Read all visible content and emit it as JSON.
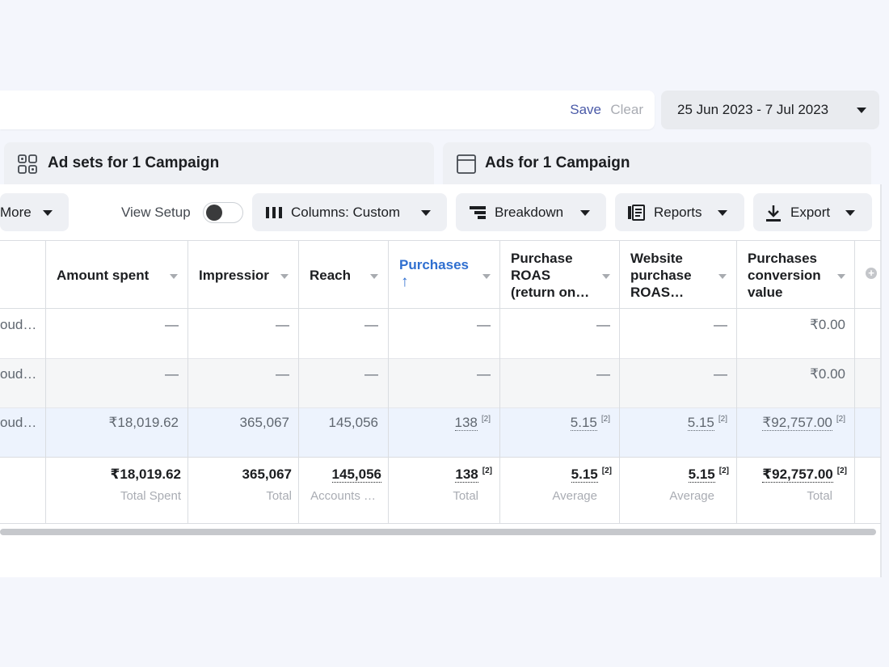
{
  "filter_bar": {
    "save_label": "Save",
    "clear_label": "Clear"
  },
  "date_range": {
    "label": "25 Jun 2023 - 7 Jul 2023",
    "icon": "chevron-down-icon"
  },
  "level_tabs": [
    {
      "label": "Ad sets for 1 Campaign",
      "icon": "adsets-grid-icon"
    },
    {
      "label": "Ads for 1 Campaign",
      "icon": "ad-window-icon"
    }
  ],
  "toolbar": {
    "more_label": "More",
    "view_setup_label": "View Setup",
    "view_setup_on": false,
    "columns_label": "Columns: Custom",
    "breakdown_label": "Breakdown",
    "reports_label": "Reports",
    "export_label": "Export"
  },
  "table": {
    "columns": [
      {
        "lines": [
          "Amount spent"
        ]
      },
      {
        "lines": [
          "Impressior"
        ]
      },
      {
        "lines": [
          "Reach"
        ]
      },
      {
        "lines": [
          "Purchases",
          "↑"
        ],
        "sorted": true
      },
      {
        "lines": [
          "Purchase",
          "ROAS",
          "(return on…"
        ]
      },
      {
        "lines": [
          "Website",
          "purchase",
          "ROAS…"
        ]
      },
      {
        "lines": [
          "Purchases",
          "conversion",
          "value"
        ]
      }
    ],
    "rows": [
      {
        "name": "oud…",
        "cells": [
          "—",
          "—",
          "—",
          "—",
          "—",
          "—",
          "₹0.00"
        ]
      },
      {
        "name": "oud…",
        "cells": [
          "—",
          "—",
          "—",
          "—",
          "—",
          "—",
          "₹0.00"
        ]
      },
      {
        "name": "oud…",
        "cells": [
          "₹18,019.62",
          "365,067",
          "145,056",
          "138",
          "5.15",
          "5.15",
          "₹92,757.00"
        ],
        "sups": [
          "",
          "",
          "",
          "[2]",
          "[2]",
          "[2]",
          "[2]"
        ]
      }
    ],
    "totals": {
      "values": [
        "₹18,019.62",
        "365,067",
        "145,056",
        "138",
        "5.15",
        "5.15",
        "₹92,757.00"
      ],
      "sups": [
        "",
        "",
        "",
        "[2]",
        "[2]",
        "[2]",
        "[2]"
      ],
      "labels": [
        "Total Spent",
        "Total",
        "Accounts …",
        "Total",
        "Average",
        "Average",
        "Total"
      ]
    }
  },
  "colors": {
    "accent_blue": "#2f6fd0",
    "link_blue": "#4a5aa8",
    "highlight_row": "#edf3fd",
    "alt_row": "#f5f6f7"
  }
}
